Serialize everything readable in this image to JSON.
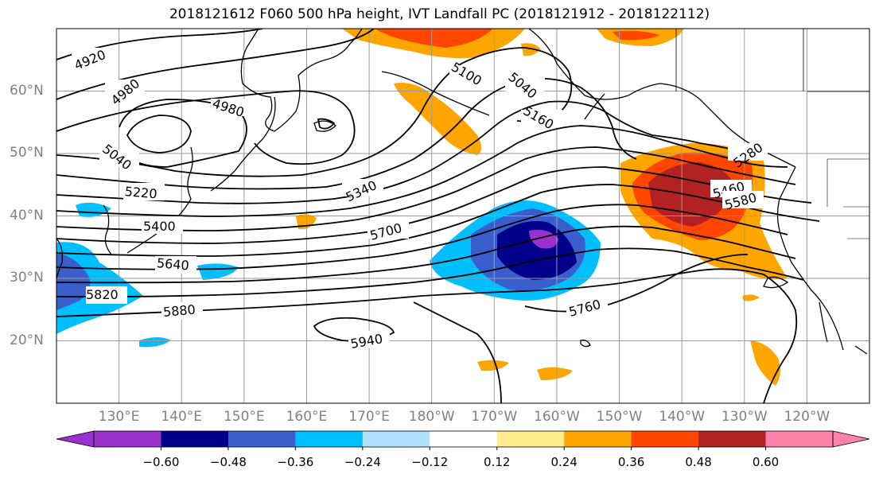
{
  "title": "2018121612 F060 500 hPa height, IVT Landfall PC (2018121912 - 2018122112)",
  "map": {
    "lon_range": [
      120,
      250
    ],
    "lat_range": [
      10,
      70
    ],
    "lat_ticks": [
      "20°N",
      "30°N",
      "40°N",
      "50°N",
      "60°N"
    ],
    "lon_ticks": [
      "130°E",
      "140°E",
      "150°E",
      "160°E",
      "170°E",
      "180°W",
      "170°W",
      "160°W",
      "150°W",
      "140°W",
      "130°W",
      "120°W"
    ],
    "grid": true,
    "contour_color": "#000000",
    "contour_labels": [
      "4920",
      "4980",
      "4980",
      "5040",
      "5100",
      "5040",
      "5160",
      "5220",
      "5280",
      "5340",
      "5400",
      "5460",
      "5580",
      "5640",
      "5700",
      "5760",
      "5820",
      "5880",
      "5940"
    ]
  },
  "colorbar": {
    "colors": [
      "#9932CC",
      "#00008B",
      "#3A5FCD",
      "#00BFFF",
      "#B0E2FF",
      "#FFFFFF",
      "#FFEC8B",
      "#FFA500",
      "#FF4500",
      "#B22222",
      "#FF82AB"
    ],
    "ticks": [
      "−0.60",
      "−0.48",
      "−0.36",
      "−0.24",
      "−0.12",
      "0.12",
      "0.24",
      "0.36",
      "0.48",
      "0.60"
    ]
  },
  "colors": {
    "land_outline": "#000000",
    "grid": "#9a9a9a",
    "label_gray": "#808080"
  }
}
